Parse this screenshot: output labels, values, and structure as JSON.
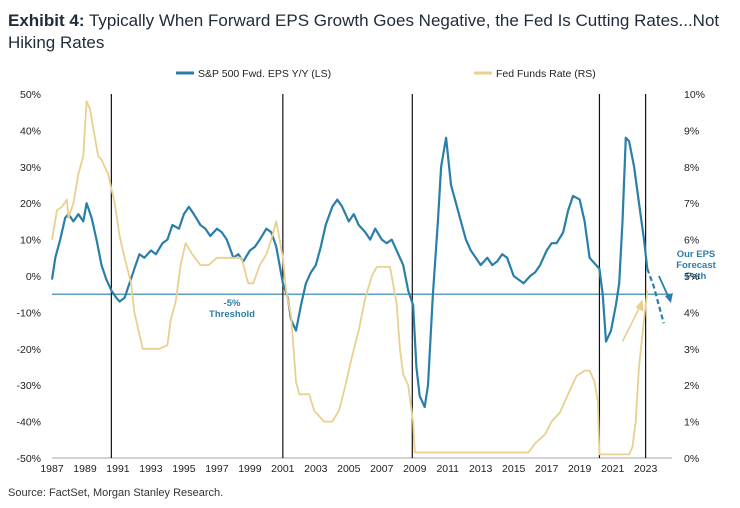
{
  "title": {
    "lead": "Exhibit 4:",
    "text": "Typically When Forward EPS Growth Goes Negative, the Fed Is Cutting Rates...Not Hiking Rates"
  },
  "source": "Source: FactSet, Morgan Stanley Research.",
  "colors": {
    "eps": "#2a7fa8",
    "ffr": "#e8d08e",
    "threshold": "#2a7fa8",
    "vline": "#111111"
  },
  "chart_data": {
    "type": "line",
    "title": "Typically When Forward EPS Growth Goes Negative, the Fed Is Cutting Rates...Not Hiking Rates",
    "x_ticks": [
      "1987",
      "1989",
      "1991",
      "1993",
      "1995",
      "1997",
      "1999",
      "2001",
      "2003",
      "2005",
      "2007",
      "2009",
      "2011",
      "2013",
      "2015",
      "2017",
      "2019",
      "2021",
      "2023"
    ],
    "x_range": [
      1987,
      2024.6
    ],
    "y_left": {
      "range": [
        -50,
        50
      ],
      "ticks": [
        "50%",
        "40%",
        "30%",
        "20%",
        "10%",
        "0%",
        "-10%",
        "-20%",
        "-30%",
        "-40%",
        "-50%"
      ]
    },
    "y_right": {
      "range": [
        0,
        10
      ],
      "ticks": [
        "10%",
        "9%",
        "8%",
        "7%",
        "6%",
        "5%",
        "4%",
        "3%",
        "2%",
        "1%",
        "0%"
      ]
    },
    "legend": [
      {
        "name": "S&P 500 Fwd. EPS Y/Y (LS)",
        "color": "#2a7fa8",
        "axis": "left"
      },
      {
        "name": "Fed Funds Rate (RS)",
        "color": "#e8d08e",
        "axis": "right"
      }
    ],
    "vertical_lines": [
      1990.6,
      2001.0,
      2008.85,
      2020.2,
      2023.0
    ],
    "threshold": {
      "value": -5,
      "label_line1": "-5%",
      "label_line2": "Threshold"
    },
    "forecast_annotation": [
      "Our EPS",
      "Forecast",
      "Path"
    ],
    "series": [
      {
        "name": "S&P 500 Fwd. EPS Y/Y (LS)",
        "axis": "left",
        "x": [
          1987.0,
          1987.2,
          1987.5,
          1987.8,
          1988.0,
          1988.3,
          1988.6,
          1988.9,
          1989.1,
          1989.4,
          1989.7,
          1990.0,
          1990.3,
          1990.6,
          1990.9,
          1991.1,
          1991.4,
          1991.7,
          1992.0,
          1992.3,
          1992.6,
          1993.0,
          1993.3,
          1993.7,
          1994.0,
          1994.3,
          1994.7,
          1995.0,
          1995.3,
          1995.6,
          1996.0,
          1996.3,
          1996.6,
          1997.0,
          1997.3,
          1997.6,
          1998.0,
          1998.3,
          1998.6,
          1999.0,
          1999.3,
          1999.6,
          2000.0,
          2000.3,
          2000.6,
          2001.0,
          2001.3,
          2001.5,
          2001.8,
          2002.1,
          2002.4,
          2002.7,
          2003.0,
          2003.3,
          2003.6,
          2004.0,
          2004.3,
          2004.6,
          2005.0,
          2005.3,
          2005.6,
          2006.0,
          2006.3,
          2006.6,
          2007.0,
          2007.3,
          2007.6,
          2008.0,
          2008.3,
          2008.6,
          2008.9,
          2009.1,
          2009.3,
          2009.6,
          2009.8,
          2010.1,
          2010.4,
          2010.6,
          2010.9,
          2011.2,
          2011.5,
          2011.8,
          2012.1,
          2012.4,
          2012.7,
          2013.0,
          2013.4,
          2013.7,
          2014.0,
          2014.3,
          2014.6,
          2015.0,
          2015.3,
          2015.6,
          2016.0,
          2016.3,
          2016.6,
          2017.0,
          2017.3,
          2017.6,
          2018.0,
          2018.3,
          2018.6,
          2019.0,
          2019.3,
          2019.6,
          2020.0,
          2020.2,
          2020.4,
          2020.6,
          2020.9,
          2021.2,
          2021.4,
          2021.6,
          2021.8,
          2022.0,
          2022.3,
          2022.6,
          2022.9,
          2023.1
        ],
        "values": [
          -1,
          5,
          10,
          16,
          17,
          15,
          17,
          15,
          20,
          16,
          10,
          3,
          -1,
          -4,
          -6,
          -7,
          -6,
          -2,
          2,
          6,
          5,
          7,
          6,
          9,
          10,
          14,
          13,
          17,
          19,
          17,
          14,
          13,
          11,
          13,
          12,
          10,
          5,
          6,
          4,
          7,
          8,
          10,
          13,
          12,
          8,
          -2,
          -6,
          -12,
          -15,
          -8,
          -2,
          1,
          3,
          8,
          14,
          19,
          21,
          19,
          15,
          17,
          14,
          12,
          10,
          13,
          10,
          9,
          10,
          6,
          3,
          -4,
          -8,
          -25,
          -33,
          -36,
          -30,
          -5,
          15,
          30,
          38,
          25,
          20,
          15,
          10,
          7,
          5,
          3,
          5,
          3,
          4,
          6,
          5,
          0,
          -1,
          -2,
          0,
          1,
          3,
          7,
          9,
          9,
          12,
          18,
          22,
          21,
          15,
          5,
          3,
          2,
          -5,
          -18,
          -15,
          -8,
          -2,
          15,
          38,
          37,
          30,
          20,
          10,
          2
        ]
      },
      {
        "name": "S&P 500 Fwd. EPS Y/Y forecast",
        "axis": "left",
        "x": [
          2023.1,
          2023.5,
          2023.8,
          2024.1
        ],
        "values": [
          2,
          -3,
          -8,
          -13
        ]
      },
      {
        "name": "Fed Funds Rate (RS)",
        "axis": "right",
        "x": [
          1987.0,
          1987.3,
          1987.6,
          1987.9,
          1988.0,
          1988.3,
          1988.6,
          1988.9,
          1989.1,
          1989.3,
          1989.6,
          1989.8,
          1990.0,
          1990.4,
          1990.8,
          1991.1,
          1991.4,
          1991.8,
          1992.0,
          1992.2,
          1992.5,
          1993.0,
          1993.5,
          1994.0,
          1994.2,
          1994.5,
          1994.8,
          1995.1,
          1995.5,
          1996.0,
          1996.5,
          1997.0,
          1997.5,
          1998.0,
          1998.5,
          1998.9,
          1999.2,
          1999.6,
          2000.0,
          2000.3,
          2000.6,
          2001.0,
          2001.2,
          2001.5,
          2001.8,
          2002.0,
          2002.6,
          2002.9,
          2003.5,
          2004.0,
          2004.4,
          2004.8,
          2005.2,
          2005.6,
          2006.0,
          2006.4,
          2006.7,
          2007.0,
          2007.5,
          2007.7,
          2007.9,
          2008.1,
          2008.3,
          2008.6,
          2008.9,
          2009.0,
          2010.0,
          2012.0,
          2014.0,
          2015.9,
          2016.3,
          2016.9,
          2017.3,
          2017.8,
          2018.3,
          2018.8,
          2019.3,
          2019.6,
          2019.9,
          2020.1,
          2020.2,
          2021.0,
          2022.0,
          2022.2,
          2022.4,
          2022.6,
          2022.9,
          2023.1
        ],
        "values": [
          6,
          6.8,
          6.9,
          7.1,
          6.6,
          7.0,
          7.8,
          8.3,
          9.8,
          9.6,
          8.8,
          8.3,
          8.2,
          7.8,
          7.0,
          6.1,
          5.5,
          4.8,
          4.0,
          3.6,
          3.0,
          3.0,
          3.0,
          3.1,
          3.8,
          4.3,
          5.3,
          5.9,
          5.6,
          5.3,
          5.3,
          5.5,
          5.5,
          5.5,
          5.5,
          4.8,
          4.8,
          5.3,
          5.6,
          6.0,
          6.5,
          5.5,
          4.6,
          3.9,
          2.1,
          1.75,
          1.75,
          1.3,
          1.0,
          1.0,
          1.3,
          2.0,
          2.8,
          3.5,
          4.4,
          5.0,
          5.25,
          5.25,
          5.25,
          4.75,
          4.25,
          3.0,
          2.3,
          2.0,
          1.0,
          0.15,
          0.15,
          0.15,
          0.15,
          0.15,
          0.4,
          0.65,
          1.0,
          1.25,
          1.75,
          2.25,
          2.4,
          2.4,
          2.1,
          1.55,
          0.1,
          0.1,
          0.1,
          0.3,
          1.0,
          2.5,
          3.8,
          4.6
        ]
      }
    ]
  }
}
